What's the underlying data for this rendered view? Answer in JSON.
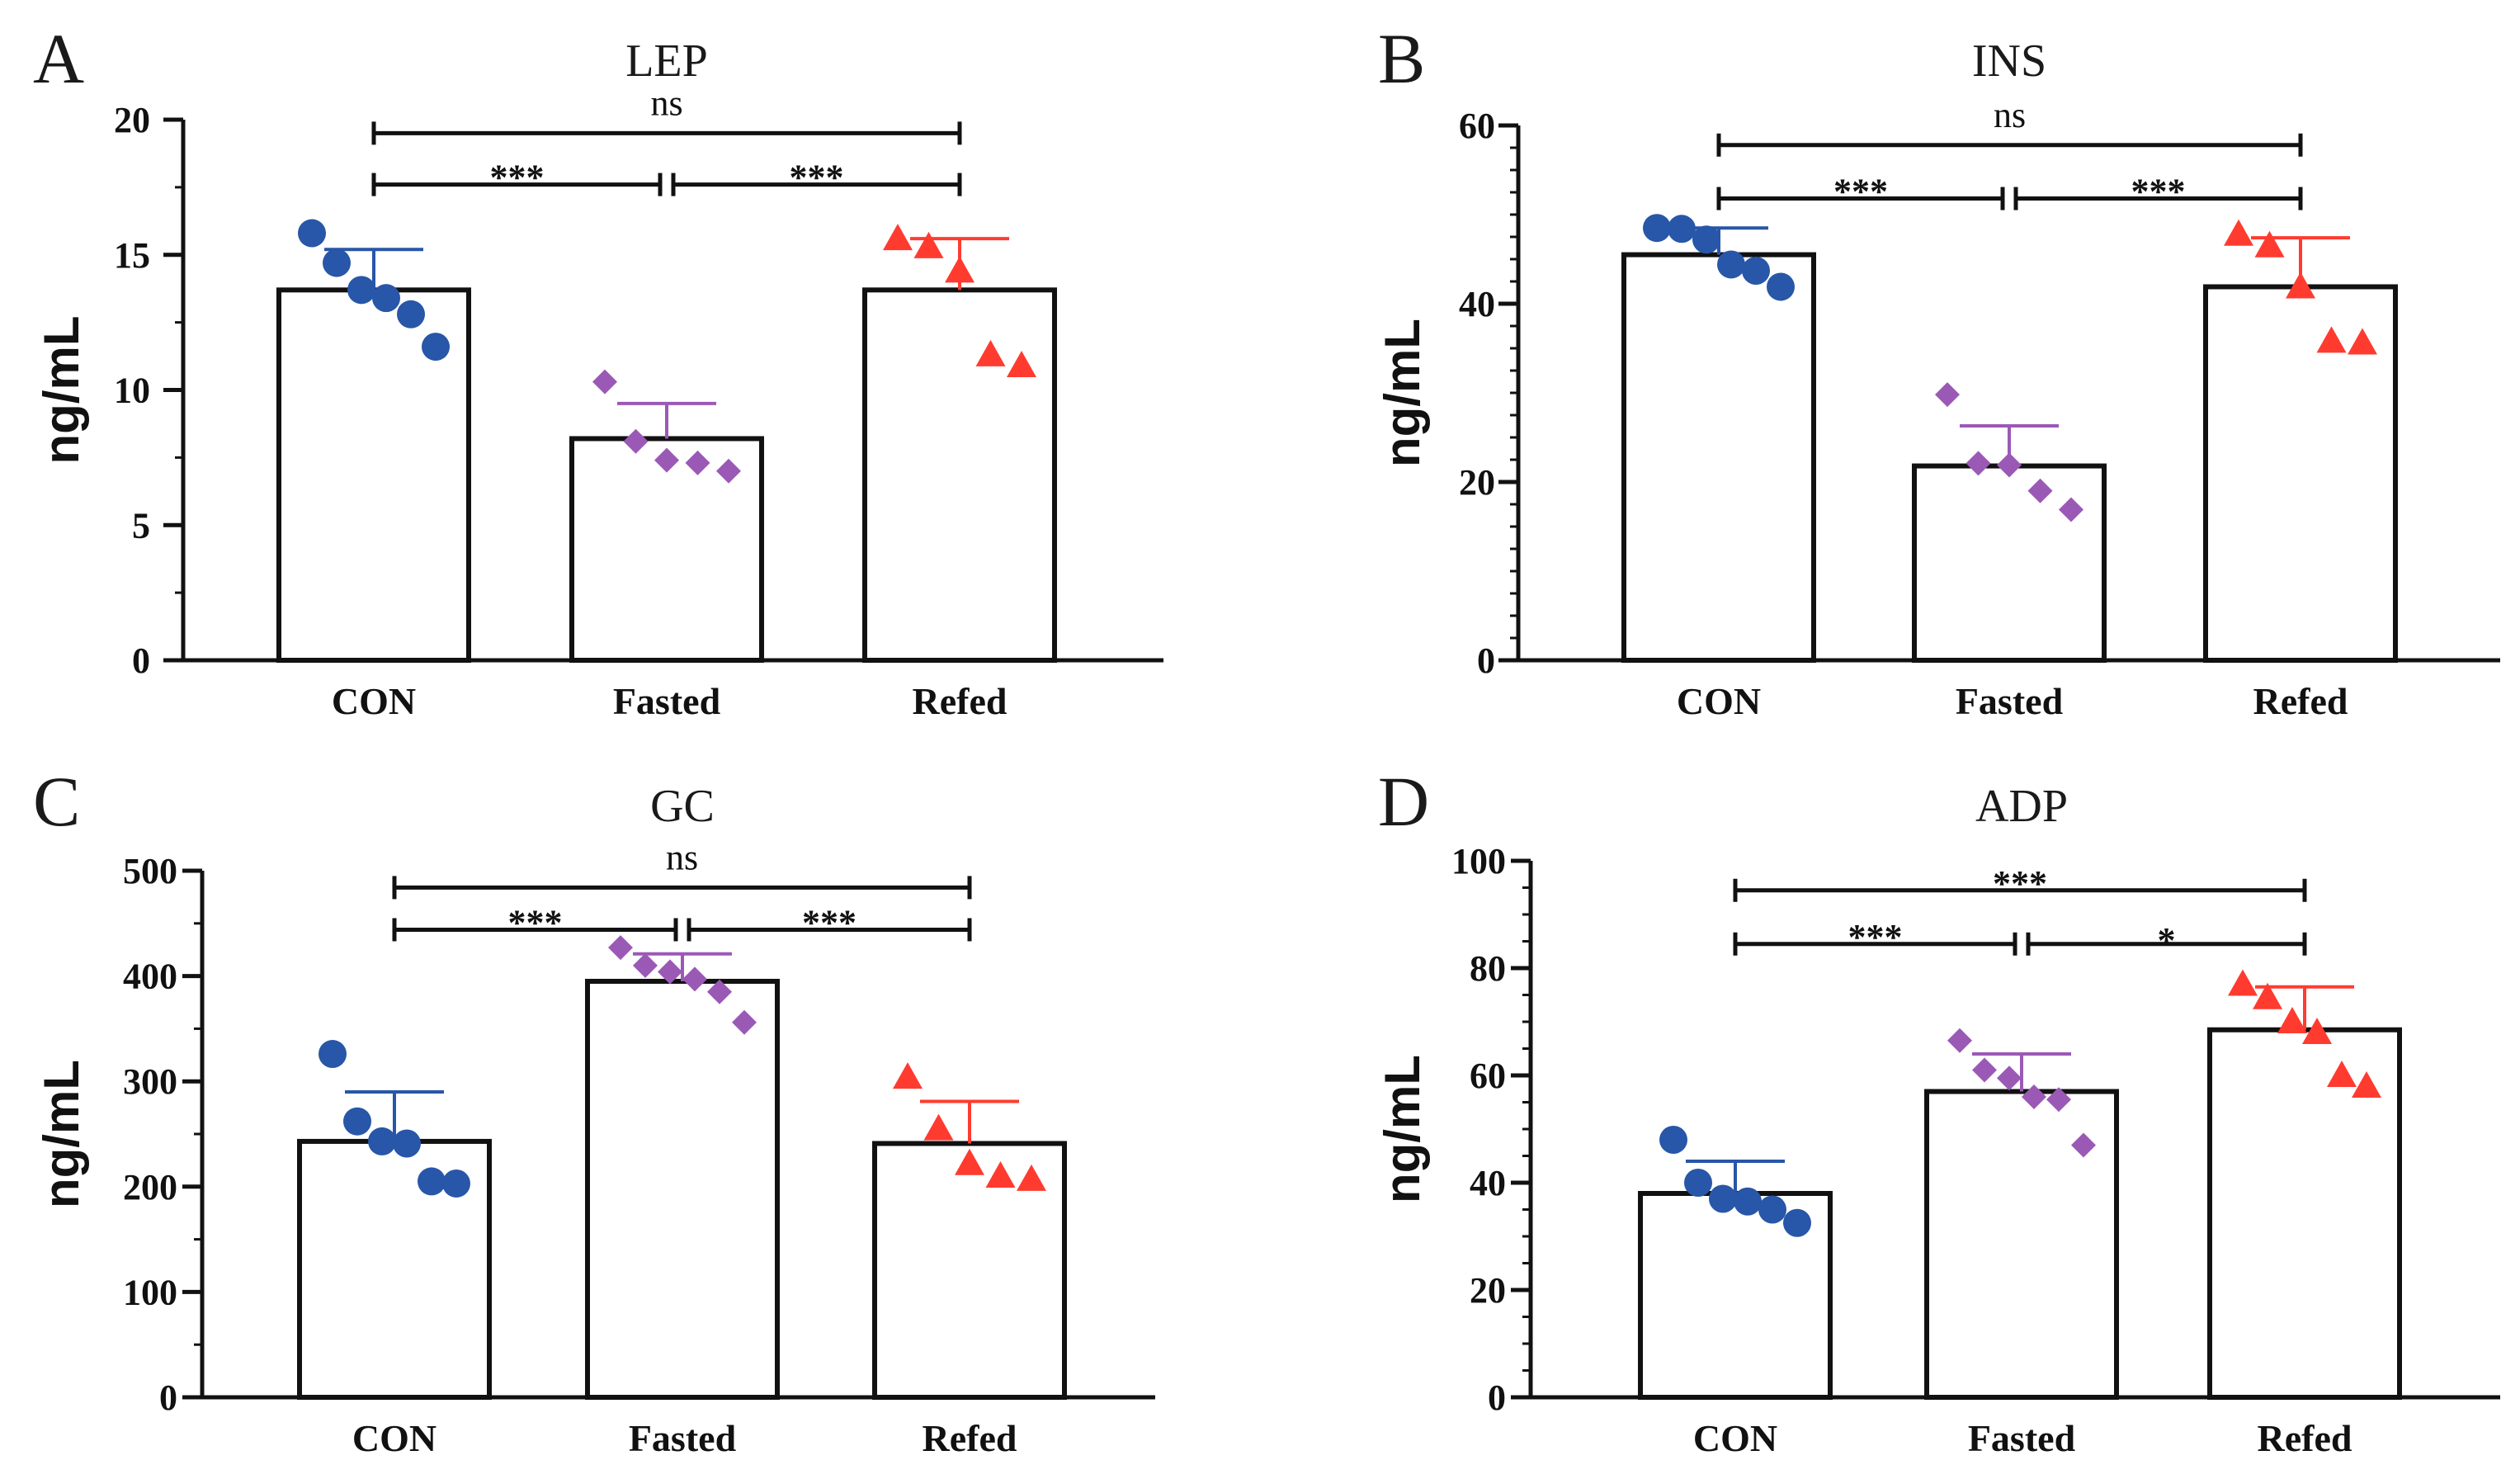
{
  "colors": {
    "CON": "#2856a8",
    "Fasted": "#9b59b6",
    "Refed": "#ff3b30",
    "axis": "#111111"
  },
  "chart_data": [
    {
      "panel": "A",
      "type": "bar",
      "title": "LEP",
      "ylabel": "ng/mL",
      "xlabel": "",
      "categories": [
        "CON",
        "Fasted",
        "Refed"
      ],
      "ylim": [
        0,
        20
      ],
      "yticks": [
        0,
        5,
        10,
        15,
        20
      ],
      "yminor": 2.5,
      "values": [
        13.7,
        8.2,
        13.7
      ],
      "sd": [
        1.5,
        1.3,
        1.9
      ],
      "points": [
        [
          15.8,
          14.7,
          13.7,
          13.4,
          12.8,
          11.6
        ],
        [
          10.3,
          8.1,
          7.4,
          7.3,
          7.0
        ],
        [
          15.6,
          15.3,
          14.4,
          11.3,
          10.9
        ]
      ],
      "markers": [
        "circle",
        "diamond",
        "triangle"
      ],
      "annotations": [
        {
          "text": "ns",
          "from": 0,
          "to": 2,
          "y": 19.5,
          "style": "ns"
        },
        {
          "text": "***",
          "from": 0,
          "to": 1,
          "y": 17.6,
          "style": "sig"
        },
        {
          "text": "***",
          "from": 1,
          "to": 2,
          "y": 17.6,
          "style": "sig"
        }
      ]
    },
    {
      "panel": "B",
      "type": "bar",
      "title": "INS",
      "ylabel": "ng/mL",
      "xlabel": "",
      "categories": [
        "CON",
        "Fasted",
        "Refed"
      ],
      "ylim": [
        0,
        60
      ],
      "yticks": [
        0,
        20,
        40,
        60
      ],
      "yminor": 2.5,
      "values": [
        45.5,
        21.8,
        41.9
      ],
      "sd": [
        3.0,
        4.5,
        5.5
      ],
      "points": [
        [
          48.5,
          48.4,
          47.2,
          44.4,
          43.7,
          41.9
        ],
        [
          29.8,
          22.1,
          21.9,
          19.0,
          16.9
        ],
        [
          47.8,
          46.5,
          41.9,
          35.8,
          35.6
        ]
      ],
      "markers": [
        "circle",
        "diamond",
        "triangle"
      ],
      "annotations": [
        {
          "text": "ns",
          "from": 0,
          "to": 2,
          "y": 57.8,
          "style": "ns"
        },
        {
          "text": "***",
          "from": 0,
          "to": 1,
          "y": 51.8,
          "style": "sig"
        },
        {
          "text": "***",
          "from": 1,
          "to": 2,
          "y": 51.8,
          "style": "sig"
        }
      ]
    },
    {
      "panel": "C",
      "type": "bar",
      "title": "GC",
      "ylabel": "ng/mL",
      "xlabel": "",
      "categories": [
        "CON",
        "Fasted",
        "Refed"
      ],
      "ylim": [
        0,
        500
      ],
      "yticks": [
        0,
        100,
        200,
        300,
        400,
        500
      ],
      "yminor": 50,
      "values": [
        243,
        395,
        241
      ],
      "sd": [
        47,
        26,
        40
      ],
      "points": [
        [
          326,
          262,
          243,
          241,
          205,
          203
        ],
        [
          427,
          410,
          404,
          397,
          385,
          356
        ],
        [
          304,
          255,
          222,
          210,
          207
        ]
      ],
      "markers": [
        "circle",
        "diamond",
        "triangle"
      ],
      "annotations": [
        {
          "text": "ns",
          "from": 0,
          "to": 2,
          "y": 484,
          "style": "ns"
        },
        {
          "text": "***",
          "from": 0,
          "to": 1,
          "y": 444,
          "style": "sig"
        },
        {
          "text": "***",
          "from": 1,
          "to": 2,
          "y": 444,
          "style": "sig"
        }
      ]
    },
    {
      "panel": "D",
      "type": "bar",
      "title": "ADP",
      "ylabel": "ng/mL",
      "xlabel": "",
      "categories": [
        "CON",
        "Fasted",
        "Refed"
      ],
      "ylim": [
        0,
        100
      ],
      "yticks": [
        0,
        20,
        40,
        60,
        80,
        100
      ],
      "yminor": 5,
      "values": [
        38,
        57,
        68.5
      ],
      "sd": [
        6,
        7,
        8
      ],
      "points": [
        [
          48,
          40,
          37,
          36.5,
          35,
          32.5
        ],
        [
          66.5,
          61,
          59.5,
          56,
          55.5,
          47
        ],
        [
          77,
          74.5,
          70,
          68,
          60,
          58
        ]
      ],
      "markers": [
        "circle",
        "diamond",
        "triangle"
      ],
      "annotations": [
        {
          "text": "***",
          "from": 0,
          "to": 2,
          "y": 94.5,
          "style": "sig"
        },
        {
          "text": "***",
          "from": 0,
          "to": 1,
          "y": 84.5,
          "style": "sig"
        },
        {
          "text": "*",
          "from": 1,
          "to": 2,
          "y": 84.5,
          "style": "sig"
        }
      ]
    }
  ]
}
